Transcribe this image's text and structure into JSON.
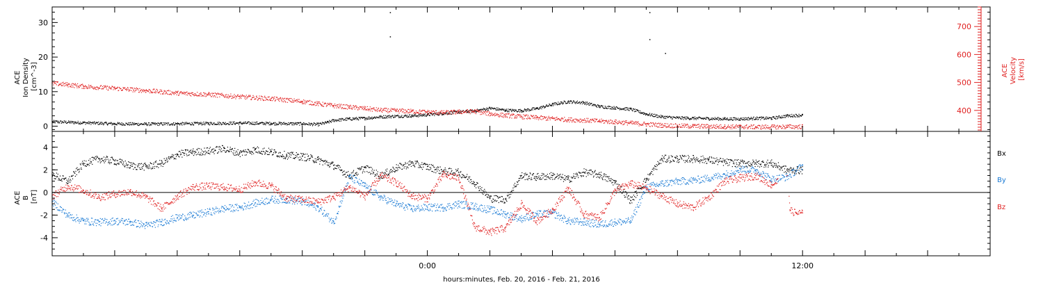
{
  "xlabel": "hours:minutes, Feb. 20, 2016 - Feb. 21, 2016",
  "chart_data": [
    {
      "type": "scatter",
      "panel": "top",
      "left_axis": {
        "label_lines": [
          "ACE",
          "Ion Density",
          "[cm^-3]"
        ],
        "ticks": [
          "0",
          "10",
          "20",
          "30"
        ],
        "ylim": [
          -1.5,
          34.5
        ]
      },
      "right_axis": {
        "label_lines": [
          "ACE",
          "Velocity",
          "[km/s]"
        ],
        "ticks": [
          "400",
          "500",
          "600",
          "700"
        ],
        "ylim": [
          325,
          770
        ]
      },
      "x": {
        "unit": "hours from 0:00 Feb 21",
        "xlim": [
          -12.0,
          18.0
        ],
        "labeled_ticks": [
          {
            "value": 0,
            "label": "0:00"
          },
          {
            "value": 12,
            "label": "12:00"
          }
        ]
      },
      "series": [
        {
          "axis": "left",
          "color": "#000000",
          "x": [
            -12.0,
            -11.0,
            -10.0,
            -9.0,
            -8.0,
            -7.0,
            -6.0,
            -5.0,
            -4.0,
            -3.5,
            -3.2,
            -3.0,
            -2.5,
            -2.0,
            -1.5,
            -1.0,
            -0.5,
            0.0,
            0.5,
            1.0,
            1.5,
            2.0,
            2.5,
            3.0,
            3.5,
            4.0,
            4.5,
            5.0,
            5.5,
            6.0,
            6.5,
            7.0,
            7.5,
            8.0,
            8.5,
            9.0,
            9.5,
            10.0,
            10.5,
            11.0,
            11.5,
            12.0
          ],
          "y": [
            1.4,
            1.1,
            0.8,
            0.7,
            0.8,
            0.9,
            1.0,
            0.9,
            0.8,
            0.6,
            1.2,
            1.8,
            2.2,
            2.4,
            2.8,
            3.0,
            3.1,
            3.4,
            3.8,
            4.2,
            4.5,
            5.3,
            4.7,
            4.6,
            5.2,
            6.4,
            7.2,
            6.9,
            5.8,
            5.4,
            5.0,
            3.6,
            2.8,
            2.5,
            2.4,
            2.3,
            2.2,
            2.2,
            2.4,
            2.4,
            3.1,
            3.3
          ]
        },
        {
          "axis": "right",
          "color": "#e02020",
          "x": [
            -12.0,
            -11.5,
            -11.0,
            -10.0,
            -9.0,
            -8.0,
            -7.0,
            -6.0,
            -5.0,
            -4.0,
            -3.5,
            -3.0,
            -2.5,
            -2.0,
            -1.5,
            -1.0,
            -0.5,
            0.0,
            0.5,
            1.0,
            1.5,
            2.0,
            2.5,
            3.0,
            3.5,
            4.0,
            4.5,
            5.0,
            5.5,
            6.0,
            6.5,
            7.0,
            7.5,
            8.0,
            8.5,
            9.0,
            9.5,
            10.0,
            10.5,
            11.0,
            11.5,
            12.0
          ],
          "y": [
            498,
            493,
            487,
            480,
            472,
            463,
            458,
            450,
            443,
            433,
            425,
            418,
            413,
            408,
            402,
            400,
            398,
            395,
            393,
            396,
            398,
            389,
            383,
            379,
            375,
            372,
            368,
            366,
            363,
            360,
            356,
            352,
            348,
            346,
            345,
            344,
            343,
            343,
            342,
            342,
            343,
            343
          ]
        },
        {
          "axis": "left",
          "color": "#000000",
          "x": [
            -1.2,
            -1.2,
            7.1,
            7.1,
            7.6
          ],
          "y": [
            33.0,
            26.0,
            33.0,
            25.2,
            21.2
          ]
        }
      ]
    },
    {
      "type": "scatter",
      "panel": "bottom",
      "left_axis": {
        "label_lines": [
          "ACE",
          "B",
          "[nT]"
        ],
        "ticks": [
          "-4",
          "-2",
          "0",
          "2",
          "4"
        ],
        "ylim": [
          -5.6,
          5.4
        ]
      },
      "x": {
        "unit": "hours from 0:00 Feb 21",
        "xlim": [
          -12.0,
          18.0
        ],
        "labeled_ticks": [
          {
            "value": 0,
            "label": "0:00"
          },
          {
            "value": 12,
            "label": "12:00"
          }
        ]
      },
      "legend": {
        "placement": "right",
        "entries": [
          {
            "name": "Bx",
            "color": "#000000"
          },
          {
            "name": "By",
            "color": "#1a7ad4"
          },
          {
            "name": "Bz",
            "color": "#e02020"
          }
        ]
      },
      "series": [
        {
          "name": "Bx",
          "color": "#000000",
          "x": [
            -12.0,
            -11.5,
            -11.0,
            -10.5,
            -10.0,
            -9.5,
            -9.0,
            -8.5,
            -8.0,
            -7.5,
            -7.0,
            -6.5,
            -6.0,
            -5.5,
            -5.0,
            -4.5,
            -4.0,
            -3.5,
            -3.0,
            -2.5,
            -2.0,
            -1.5,
            -1.0,
            -0.5,
            0.0,
            0.5,
            1.0,
            1.5,
            2.0,
            2.5,
            3.0,
            3.5,
            4.0,
            4.5,
            5.0,
            5.5,
            6.0,
            6.5,
            7.0,
            7.5,
            8.0,
            8.5,
            9.0,
            9.5,
            10.0,
            10.5,
            11.0,
            11.5,
            12.0
          ],
          "y": [
            1.6,
            1.0,
            2.6,
            3.0,
            2.8,
            2.4,
            2.3,
            2.6,
            3.4,
            3.6,
            3.7,
            3.9,
            3.5,
            3.8,
            3.6,
            3.3,
            3.2,
            2.9,
            2.4,
            1.5,
            2.2,
            1.5,
            2.2,
            2.6,
            2.3,
            1.9,
            1.8,
            0.9,
            -0.5,
            -0.6,
            1.5,
            1.4,
            1.5,
            1.2,
            1.8,
            1.6,
            0.9,
            -0.7,
            1.2,
            3.0,
            3.0,
            3.0,
            2.9,
            2.7,
            2.6,
            2.6,
            2.6,
            2.0,
            2.0
          ]
        },
        {
          "name": "By",
          "color": "#1a7ad4",
          "x": [
            -12.0,
            -11.5,
            -11.0,
            -10.5,
            -10.0,
            -9.5,
            -9.0,
            -8.5,
            -8.0,
            -7.5,
            -7.0,
            -6.5,
            -6.0,
            -5.5,
            -5.0,
            -4.5,
            -4.0,
            -3.5,
            -3.0,
            -2.5,
            -2.0,
            -1.5,
            -1.0,
            -0.5,
            0.0,
            0.5,
            1.0,
            1.5,
            2.0,
            2.5,
            3.0,
            3.5,
            4.0,
            4.5,
            5.0,
            5.5,
            6.0,
            6.5,
            7.0,
            7.5,
            8.0,
            8.5,
            9.0,
            9.5,
            10.0,
            10.5,
            11.0,
            11.5,
            12.0
          ],
          "y": [
            -0.8,
            -2.0,
            -2.5,
            -2.6,
            -2.5,
            -2.6,
            -2.9,
            -2.6,
            -2.2,
            -2.0,
            -1.7,
            -1.4,
            -1.3,
            -0.9,
            -0.6,
            -0.6,
            -0.8,
            -1.3,
            -2.6,
            1.4,
            0.6,
            -0.4,
            -1.0,
            -1.4,
            -1.3,
            -1.3,
            -1.0,
            -1.2,
            -1.5,
            -1.9,
            -2.3,
            -1.9,
            -1.8,
            -2.5,
            -2.6,
            -2.8,
            -2.6,
            -2.5,
            0.5,
            0.8,
            1.0,
            1.1,
            1.3,
            1.6,
            2.1,
            2.0,
            1.2,
            1.4,
            2.4
          ]
        },
        {
          "name": "Bz",
          "color": "#e02020",
          "x": [
            -12.0,
            -11.5,
            -11.0,
            -10.5,
            -10.0,
            -9.5,
            -9.0,
            -8.5,
            -8.0,
            -7.5,
            -7.0,
            -6.5,
            -6.0,
            -5.5,
            -5.0,
            -4.5,
            -4.0,
            -3.5,
            -3.0,
            -2.5,
            -2.0,
            -1.5,
            -1.0,
            -0.5,
            0.0,
            0.5,
            1.0,
            1.5,
            2.0,
            2.5,
            3.0,
            3.5,
            4.0,
            4.5,
            5.0,
            5.5,
            6.0,
            6.5,
            7.0,
            7.5,
            8.0,
            8.5,
            9.0,
            9.5,
            10.0,
            10.5,
            11.0,
            11.5,
            11.6,
            11.8,
            12.0
          ],
          "y": [
            -0.3,
            0.6,
            0.2,
            -0.4,
            -0.1,
            0.1,
            -0.4,
            -1.4,
            -0.3,
            0.5,
            0.6,
            0.5,
            0.3,
            0.9,
            0.6,
            -0.5,
            -0.6,
            -0.8,
            -0.4,
            0.5,
            -0.3,
            1.5,
            0.9,
            -0.3,
            -0.5,
            1.6,
            1.3,
            -3.0,
            -3.5,
            -3.1,
            -1.0,
            -2.5,
            -1.5,
            0.4,
            -1.9,
            -2.2,
            0.2,
            0.8,
            0.4,
            -0.3,
            -1.0,
            -1.3,
            -0.4,
            1.0,
            1.3,
            1.5,
            0.7,
            1.5,
            -1.6,
            -1.8,
            -1.8
          ]
        }
      ]
    }
  ]
}
